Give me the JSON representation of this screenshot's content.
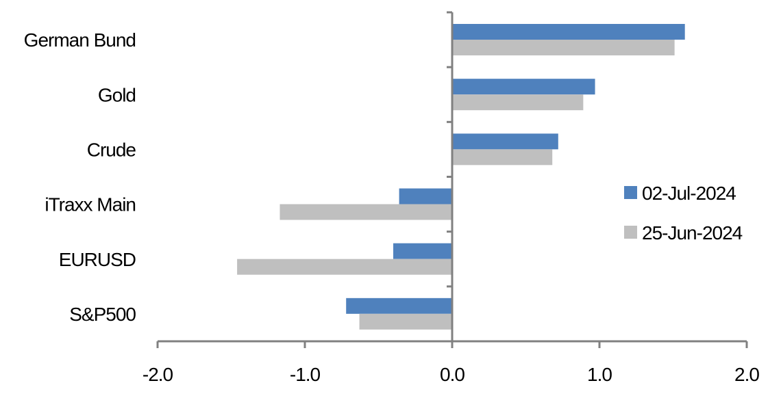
{
  "chart_data": {
    "type": "bar",
    "orientation": "horizontal",
    "categories": [
      "German Bund",
      "Gold",
      "Crude",
      "iTraxx Main",
      "EURUSD",
      "S&P500"
    ],
    "series": [
      {
        "name": "02-Jul-2024",
        "color": "#4f81bd",
        "values": [
          1.58,
          0.97,
          0.72,
          -0.36,
          -0.4,
          -0.72
        ]
      },
      {
        "name": "25-Jun-2024",
        "color": "#bfbfbf",
        "values": [
          1.51,
          0.89,
          0.68,
          -1.17,
          -1.46,
          -0.63
        ]
      }
    ],
    "xlim": [
      -2.0,
      2.0
    ],
    "xticks": [
      "-2.0",
      "-1.0",
      "0.0",
      "1.0",
      "2.0"
    ],
    "grid": false,
    "legend": "right"
  }
}
